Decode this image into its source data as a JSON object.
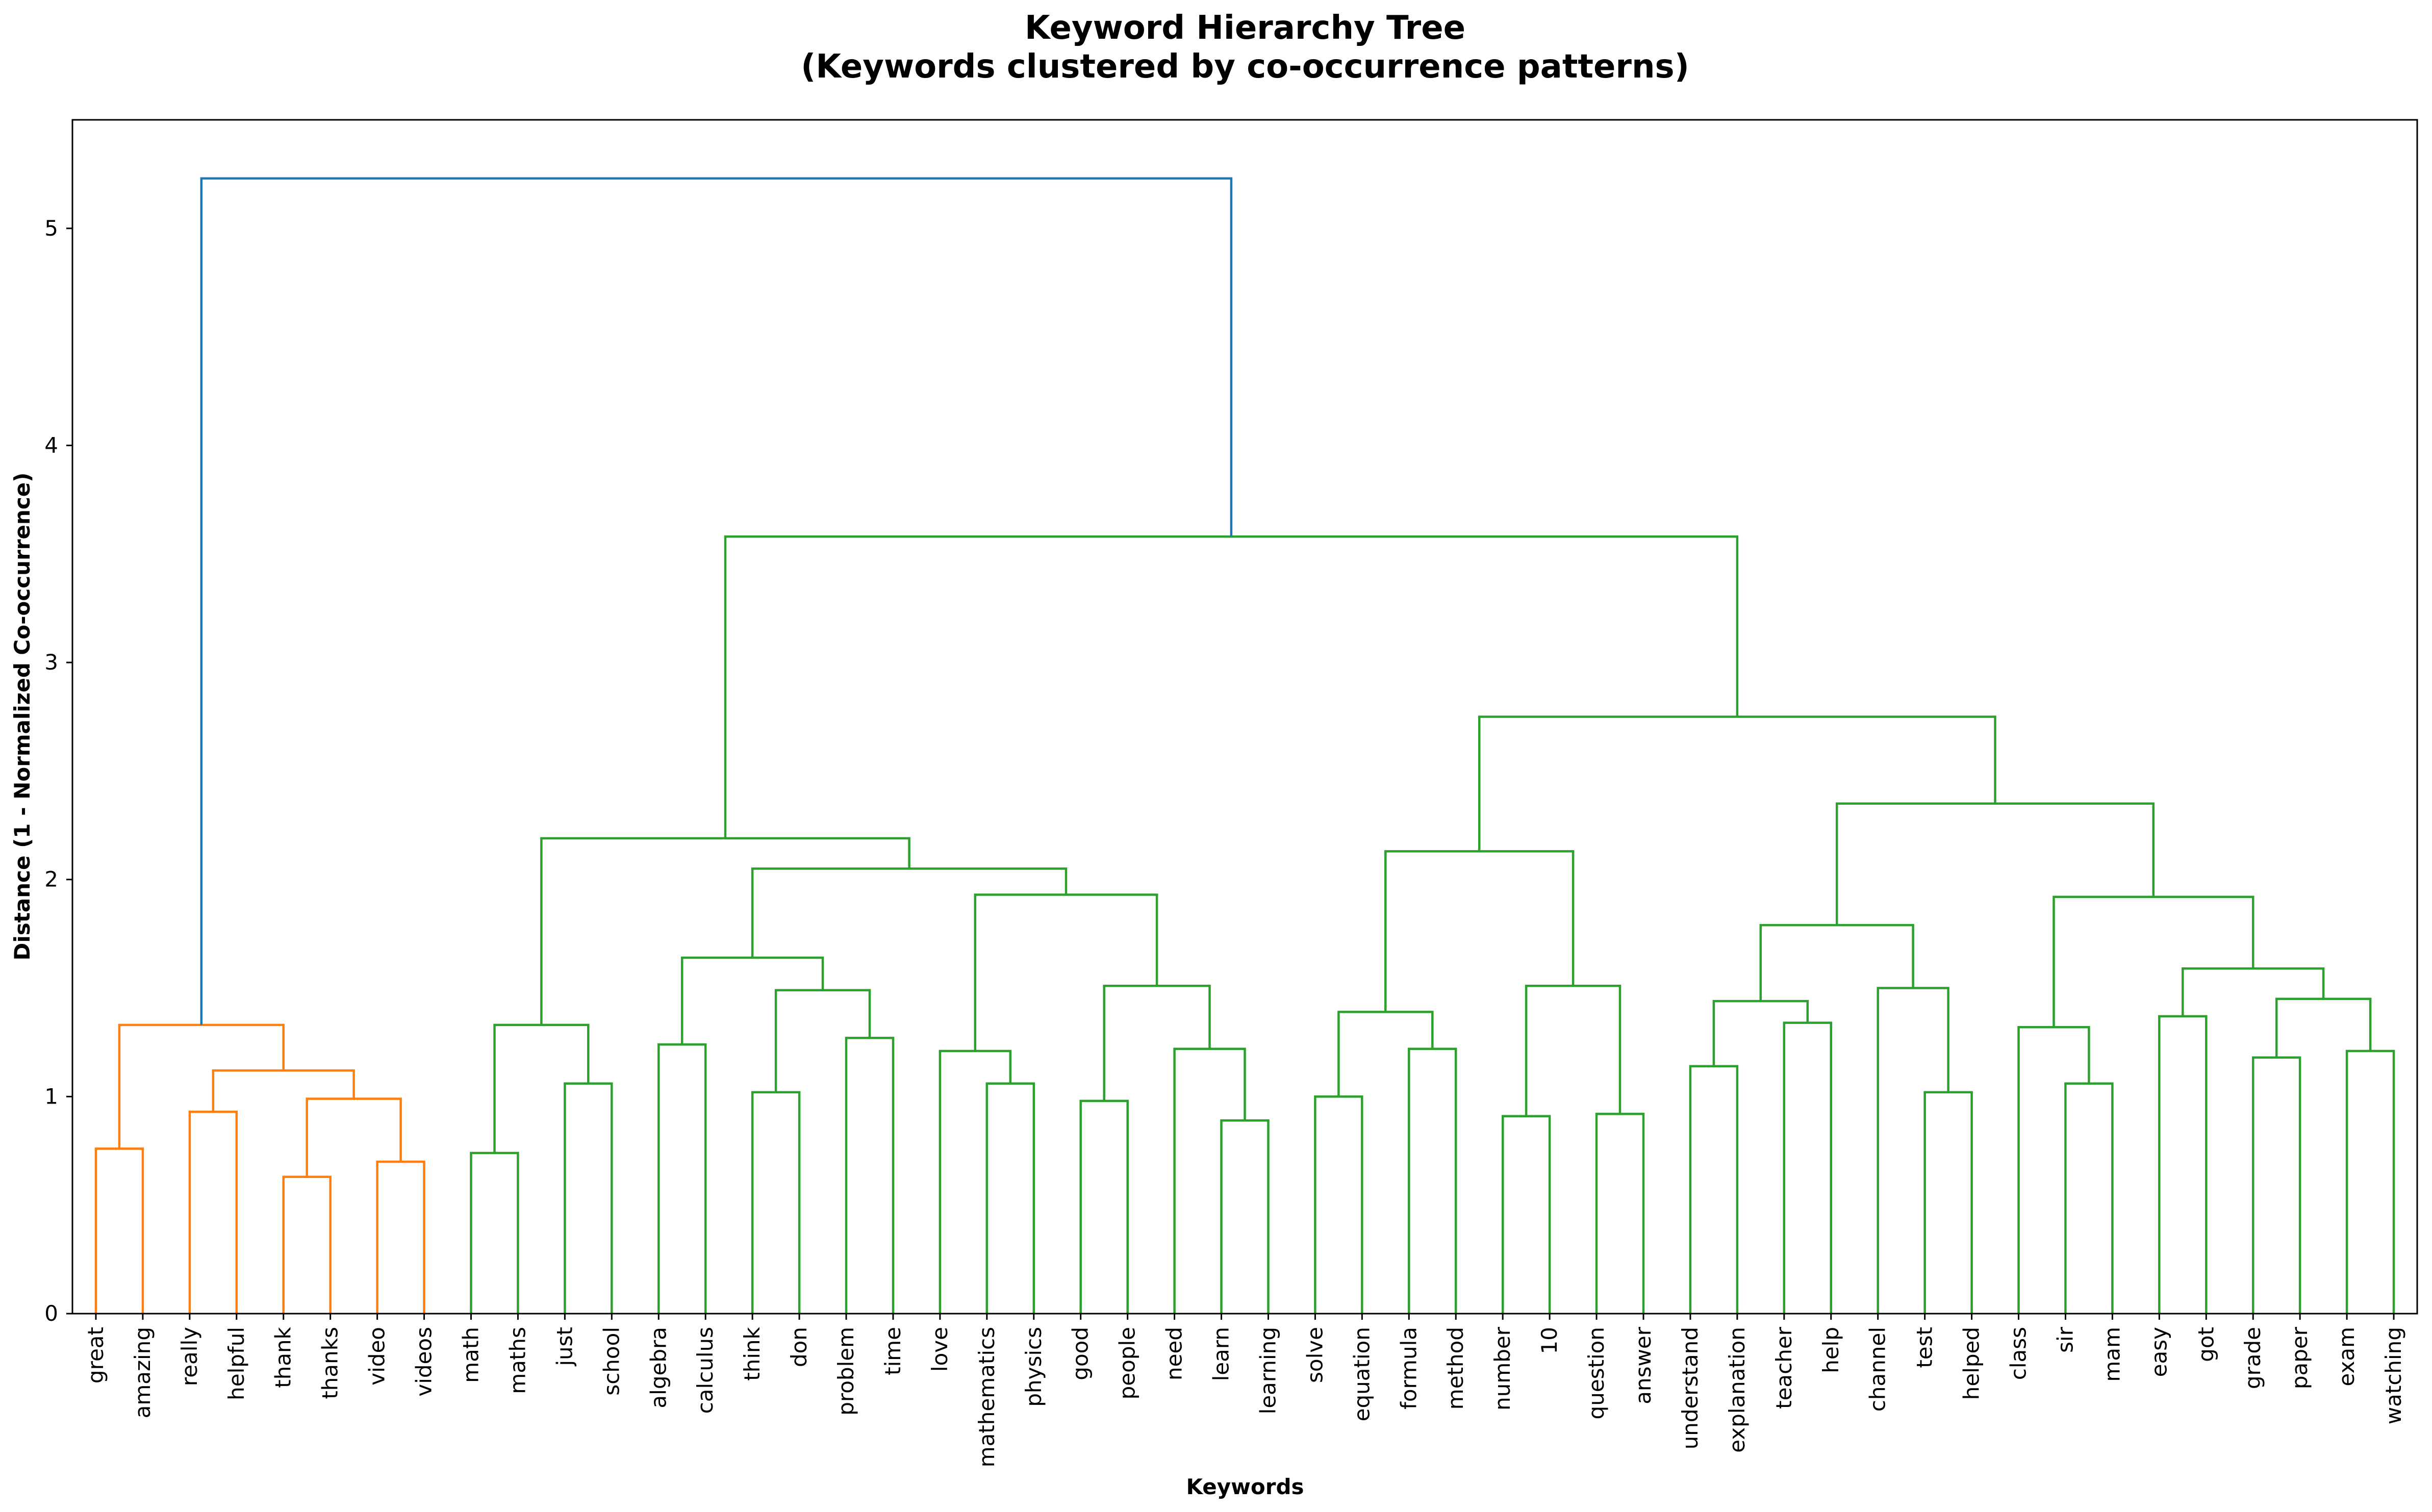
{
  "chart_data": {
    "type": "dendrogram",
    "title": "Keyword Hierarchy Tree",
    "subtitle": "(Keywords clustered by co-occurrence patterns)",
    "xlabel": "Keywords",
    "ylabel": "Distance (1 - Normalized Co-occurrence)",
    "ylim": [
      0,
      5.5
    ],
    "yticks": [
      "0",
      "1",
      "2",
      "3",
      "4",
      "5"
    ],
    "grid": false,
    "colors": {
      "cluster_1": "#ff7f0e",
      "cluster_2": "#2ca02c",
      "root": "#1f77b4"
    },
    "leaves": [
      "great",
      "amazing",
      "really",
      "helpful",
      "thank",
      "thanks",
      "video",
      "videos",
      "math",
      "maths",
      "just",
      "school",
      "algebra",
      "calculus",
      "think",
      "don",
      "problem",
      "time",
      "love",
      "mathematics",
      "physics",
      "good",
      "people",
      "need",
      "learn",
      "learning",
      "solve",
      "equation",
      "formula",
      "method",
      "number",
      "10",
      "question",
      "answer",
      "understand",
      "explanation",
      "teacher",
      "help",
      "channel",
      "test",
      "helped",
      "class",
      "sir",
      "mam",
      "easy",
      "got",
      "grade",
      "paper",
      "exam",
      "watching"
    ],
    "merges": [
      {
        "id": "n1",
        "left": "great",
        "right": "amazing",
        "height": 0.76,
        "color": "cluster_1"
      },
      {
        "id": "n2",
        "left": "really",
        "right": "helpful",
        "height": 0.93,
        "color": "cluster_1"
      },
      {
        "id": "n3",
        "left": "thank",
        "right": "thanks",
        "height": 0.63,
        "color": "cluster_1"
      },
      {
        "id": "n4",
        "left": "video",
        "right": "videos",
        "height": 0.7,
        "color": "cluster_1"
      },
      {
        "id": "n5",
        "left": "n3",
        "right": "n4",
        "height": 0.99,
        "color": "cluster_1"
      },
      {
        "id": "n6",
        "left": "n2",
        "right": "n5",
        "height": 1.12,
        "color": "cluster_1"
      },
      {
        "id": "n7",
        "left": "n1",
        "right": "n6",
        "height": 1.33,
        "color": "cluster_1"
      },
      {
        "id": "n8",
        "left": "math",
        "right": "maths",
        "height": 0.74,
        "color": "cluster_2"
      },
      {
        "id": "n9",
        "left": "just",
        "right": "school",
        "height": 1.06,
        "color": "cluster_2"
      },
      {
        "id": "n10",
        "left": "n8",
        "right": "n9",
        "height": 1.33,
        "color": "cluster_2"
      },
      {
        "id": "n11",
        "left": "algebra",
        "right": "calculus",
        "height": 1.24,
        "color": "cluster_2"
      },
      {
        "id": "n12",
        "left": "think",
        "right": "don",
        "height": 1.02,
        "color": "cluster_2"
      },
      {
        "id": "n13",
        "left": "problem",
        "right": "time",
        "height": 1.27,
        "color": "cluster_2"
      },
      {
        "id": "n14",
        "left": "n12",
        "right": "n13",
        "height": 1.49,
        "color": "cluster_2"
      },
      {
        "id": "n15",
        "left": "n11",
        "right": "n14",
        "height": 1.64,
        "color": "cluster_2"
      },
      {
        "id": "n16",
        "left": "mathematics",
        "right": "physics",
        "height": 1.06,
        "color": "cluster_2"
      },
      {
        "id": "n17",
        "left": "love",
        "right": "n16",
        "height": 1.21,
        "color": "cluster_2"
      },
      {
        "id": "n18",
        "left": "good",
        "right": "people",
        "height": 0.98,
        "color": "cluster_2"
      },
      {
        "id": "n19",
        "left": "learn",
        "right": "learning",
        "height": 0.89,
        "color": "cluster_2"
      },
      {
        "id": "n20",
        "left": "need",
        "right": "n19",
        "height": 1.22,
        "color": "cluster_2"
      },
      {
        "id": "n21",
        "left": "n18",
        "right": "n20",
        "height": 1.51,
        "color": "cluster_2"
      },
      {
        "id": "n22",
        "left": "n17",
        "right": "n21",
        "height": 1.93,
        "color": "cluster_2"
      },
      {
        "id": "n23",
        "left": "n15",
        "right": "n22",
        "height": 2.05,
        "color": "cluster_2"
      },
      {
        "id": "n24",
        "left": "n10",
        "right": "n23",
        "height": 2.19,
        "color": "cluster_2"
      },
      {
        "id": "n25",
        "left": "solve",
        "right": "equation",
        "height": 1.0,
        "color": "cluster_2"
      },
      {
        "id": "n26",
        "left": "formula",
        "right": "method",
        "height": 1.22,
        "color": "cluster_2"
      },
      {
        "id": "n27",
        "left": "n25",
        "right": "n26",
        "height": 1.39,
        "color": "cluster_2"
      },
      {
        "id": "n28",
        "left": "number",
        "right": "10",
        "height": 0.91,
        "color": "cluster_2"
      },
      {
        "id": "n29",
        "left": "question",
        "right": "answer",
        "height": 0.92,
        "color": "cluster_2"
      },
      {
        "id": "n30",
        "left": "n28",
        "right": "n29",
        "height": 1.51,
        "color": "cluster_2"
      },
      {
        "id": "n31",
        "left": "n27",
        "right": "n30",
        "height": 2.13,
        "color": "cluster_2"
      },
      {
        "id": "n32",
        "left": "understand",
        "right": "explanation",
        "height": 1.14,
        "color": "cluster_2"
      },
      {
        "id": "n33",
        "left": "teacher",
        "right": "help",
        "height": 1.34,
        "color": "cluster_2"
      },
      {
        "id": "n34",
        "left": "n32",
        "right": "n33",
        "height": 1.44,
        "color": "cluster_2"
      },
      {
        "id": "n35",
        "left": "test",
        "right": "helped",
        "height": 1.02,
        "color": "cluster_2"
      },
      {
        "id": "n36",
        "left": "channel",
        "right": "n35",
        "height": 1.5,
        "color": "cluster_2"
      },
      {
        "id": "n37",
        "left": "n34",
        "right": "n36",
        "height": 1.79,
        "color": "cluster_2"
      },
      {
        "id": "n38",
        "left": "sir",
        "right": "mam",
        "height": 1.06,
        "color": "cluster_2"
      },
      {
        "id": "n39",
        "left": "class",
        "right": "n38",
        "height": 1.32,
        "color": "cluster_2"
      },
      {
        "id": "n40",
        "left": "easy",
        "right": "got",
        "height": 1.37,
        "color": "cluster_2"
      },
      {
        "id": "n41",
        "left": "grade",
        "right": "paper",
        "height": 1.18,
        "color": "cluster_2"
      },
      {
        "id": "n42",
        "left": "exam",
        "right": "watching",
        "height": 1.21,
        "color": "cluster_2"
      },
      {
        "id": "n43",
        "left": "n41",
        "right": "n42",
        "height": 1.45,
        "color": "cluster_2"
      },
      {
        "id": "n44",
        "left": "n40",
        "right": "n43",
        "height": 1.59,
        "color": "cluster_2"
      },
      {
        "id": "n45",
        "left": "n39",
        "right": "n44",
        "height": 1.92,
        "color": "cluster_2"
      },
      {
        "id": "n46",
        "left": "n37",
        "right": "n45",
        "height": 2.35,
        "color": "cluster_2"
      },
      {
        "id": "n47",
        "left": "n31",
        "right": "n46",
        "height": 2.75,
        "color": "cluster_2"
      },
      {
        "id": "n48",
        "left": "n24",
        "right": "n47",
        "height": 3.58,
        "color": "cluster_2"
      },
      {
        "id": "n49",
        "left": "n7",
        "right": "n48",
        "height": 5.23,
        "color": "root"
      }
    ]
  }
}
